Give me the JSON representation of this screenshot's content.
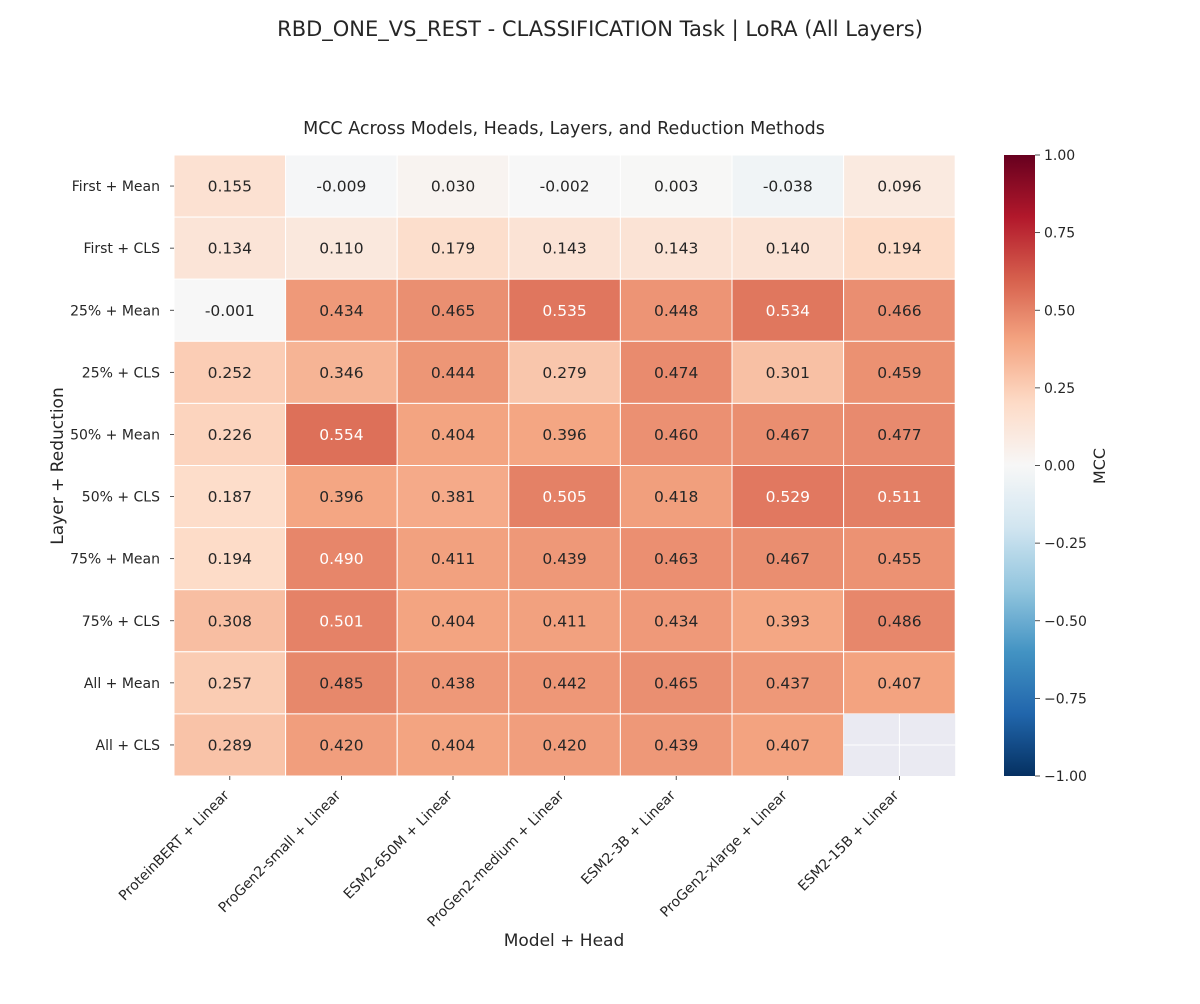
{
  "suptitle": "RBD_ONE_VS_REST - CLASSIFICATION Task | LoRA (All Layers)",
  "chart_data": {
    "type": "heatmap",
    "title": "MCC Across Models, Heads, Layers, and Reduction Methods",
    "xlabel": "Model + Head",
    "ylabel": "Layer + Reduction",
    "x_categories": [
      "ProteinBERT + Linear",
      "ProGen2-small + Linear",
      "ESM2-650M + Linear",
      "ProGen2-medium + Linear",
      "ESM2-3B + Linear",
      "ProGen2-xlarge + Linear",
      "ESM2-15B + Linear"
    ],
    "y_categories": [
      "First + Mean",
      "First + CLS",
      "25% + Mean",
      "25% + CLS",
      "50% + Mean",
      "50% + CLS",
      "75% + Mean",
      "75% + CLS",
      "All + Mean",
      "All + CLS"
    ],
    "values": [
      [
        0.155,
        -0.009,
        0.03,
        -0.002,
        0.003,
        -0.038,
        0.096
      ],
      [
        0.134,
        0.11,
        0.179,
        0.143,
        0.143,
        0.14,
        0.194
      ],
      [
        -0.001,
        0.434,
        0.465,
        0.535,
        0.448,
        0.534,
        0.466
      ],
      [
        0.252,
        0.346,
        0.444,
        0.279,
        0.474,
        0.301,
        0.459
      ],
      [
        0.226,
        0.554,
        0.404,
        0.396,
        0.46,
        0.467,
        0.477
      ],
      [
        0.187,
        0.396,
        0.381,
        0.505,
        0.418,
        0.529,
        0.511
      ],
      [
        0.194,
        0.49,
        0.411,
        0.439,
        0.463,
        0.467,
        0.455
      ],
      [
        0.308,
        0.501,
        0.404,
        0.411,
        0.434,
        0.393,
        0.486
      ],
      [
        0.257,
        0.485,
        0.438,
        0.442,
        0.465,
        0.437,
        0.407
      ],
      [
        0.289,
        0.42,
        0.404,
        0.42,
        0.439,
        0.407,
        null
      ]
    ],
    "value_format": "0.000",
    "colormap": "RdBu_r",
    "vmin": -1.0,
    "vmax": 1.0,
    "colorbar": {
      "label": "MCC",
      "ticks": [
        1.0,
        0.75,
        0.5,
        0.25,
        0.0,
        -0.25,
        -0.5,
        -0.75,
        -1.0
      ],
      "tick_labels": [
        "1.00",
        "0.75",
        "0.50",
        "0.25",
        "0.00",
        "−0.25",
        "−0.50",
        "−0.75",
        "−1.00"
      ],
      "placement": "right"
    },
    "missing_color": "#eaeaf2",
    "grid": true
  }
}
